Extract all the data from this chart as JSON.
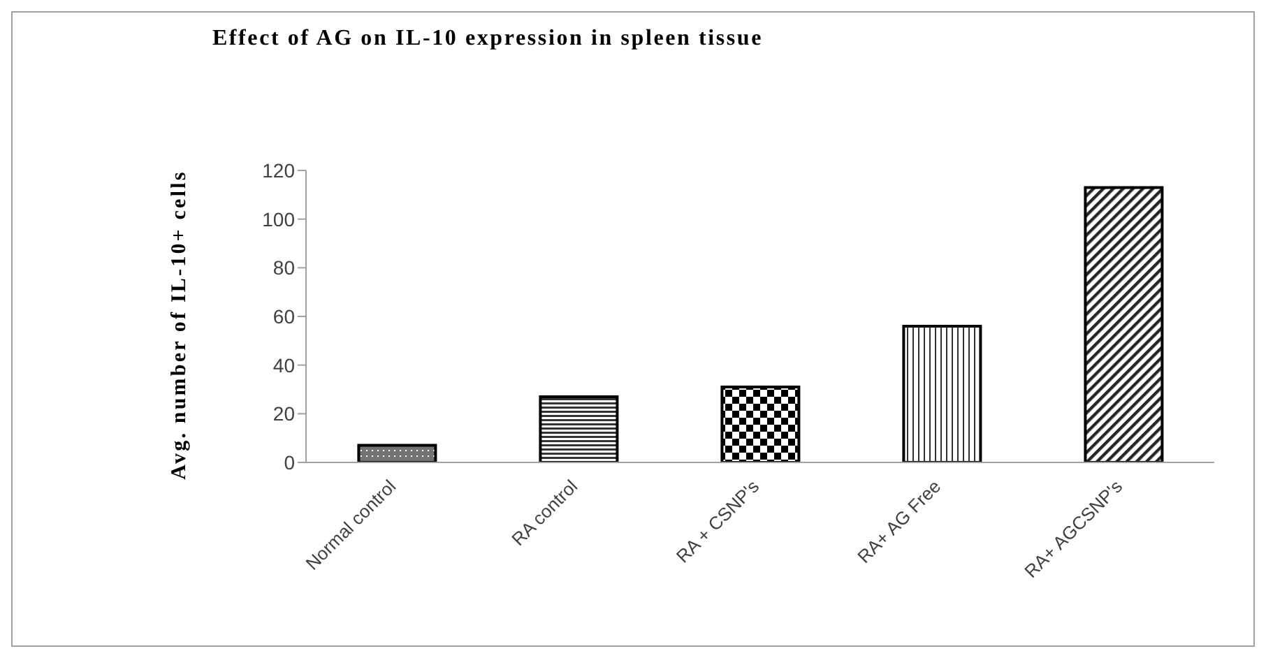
{
  "chart_data": {
    "type": "bar",
    "title": "Effect of AG on IL-10 expression in spleen tissue",
    "ylabel": "Avg. number of  IL-10+ cells",
    "categories": [
      "Normal control",
      "RA control",
      "RA + CSNP's",
      "RA+ AG Free",
      "RA+ AGCSNP's"
    ],
    "values": [
      7,
      27,
      31,
      56,
      113
    ],
    "colors": [
      "#000000",
      "#000000",
      "#000000",
      "#000000",
      "#000000"
    ],
    "ylim": [
      0,
      120
    ],
    "yticks": [
      0,
      20,
      40,
      60,
      80,
      100,
      120
    ],
    "grid": false,
    "legend": false
  }
}
